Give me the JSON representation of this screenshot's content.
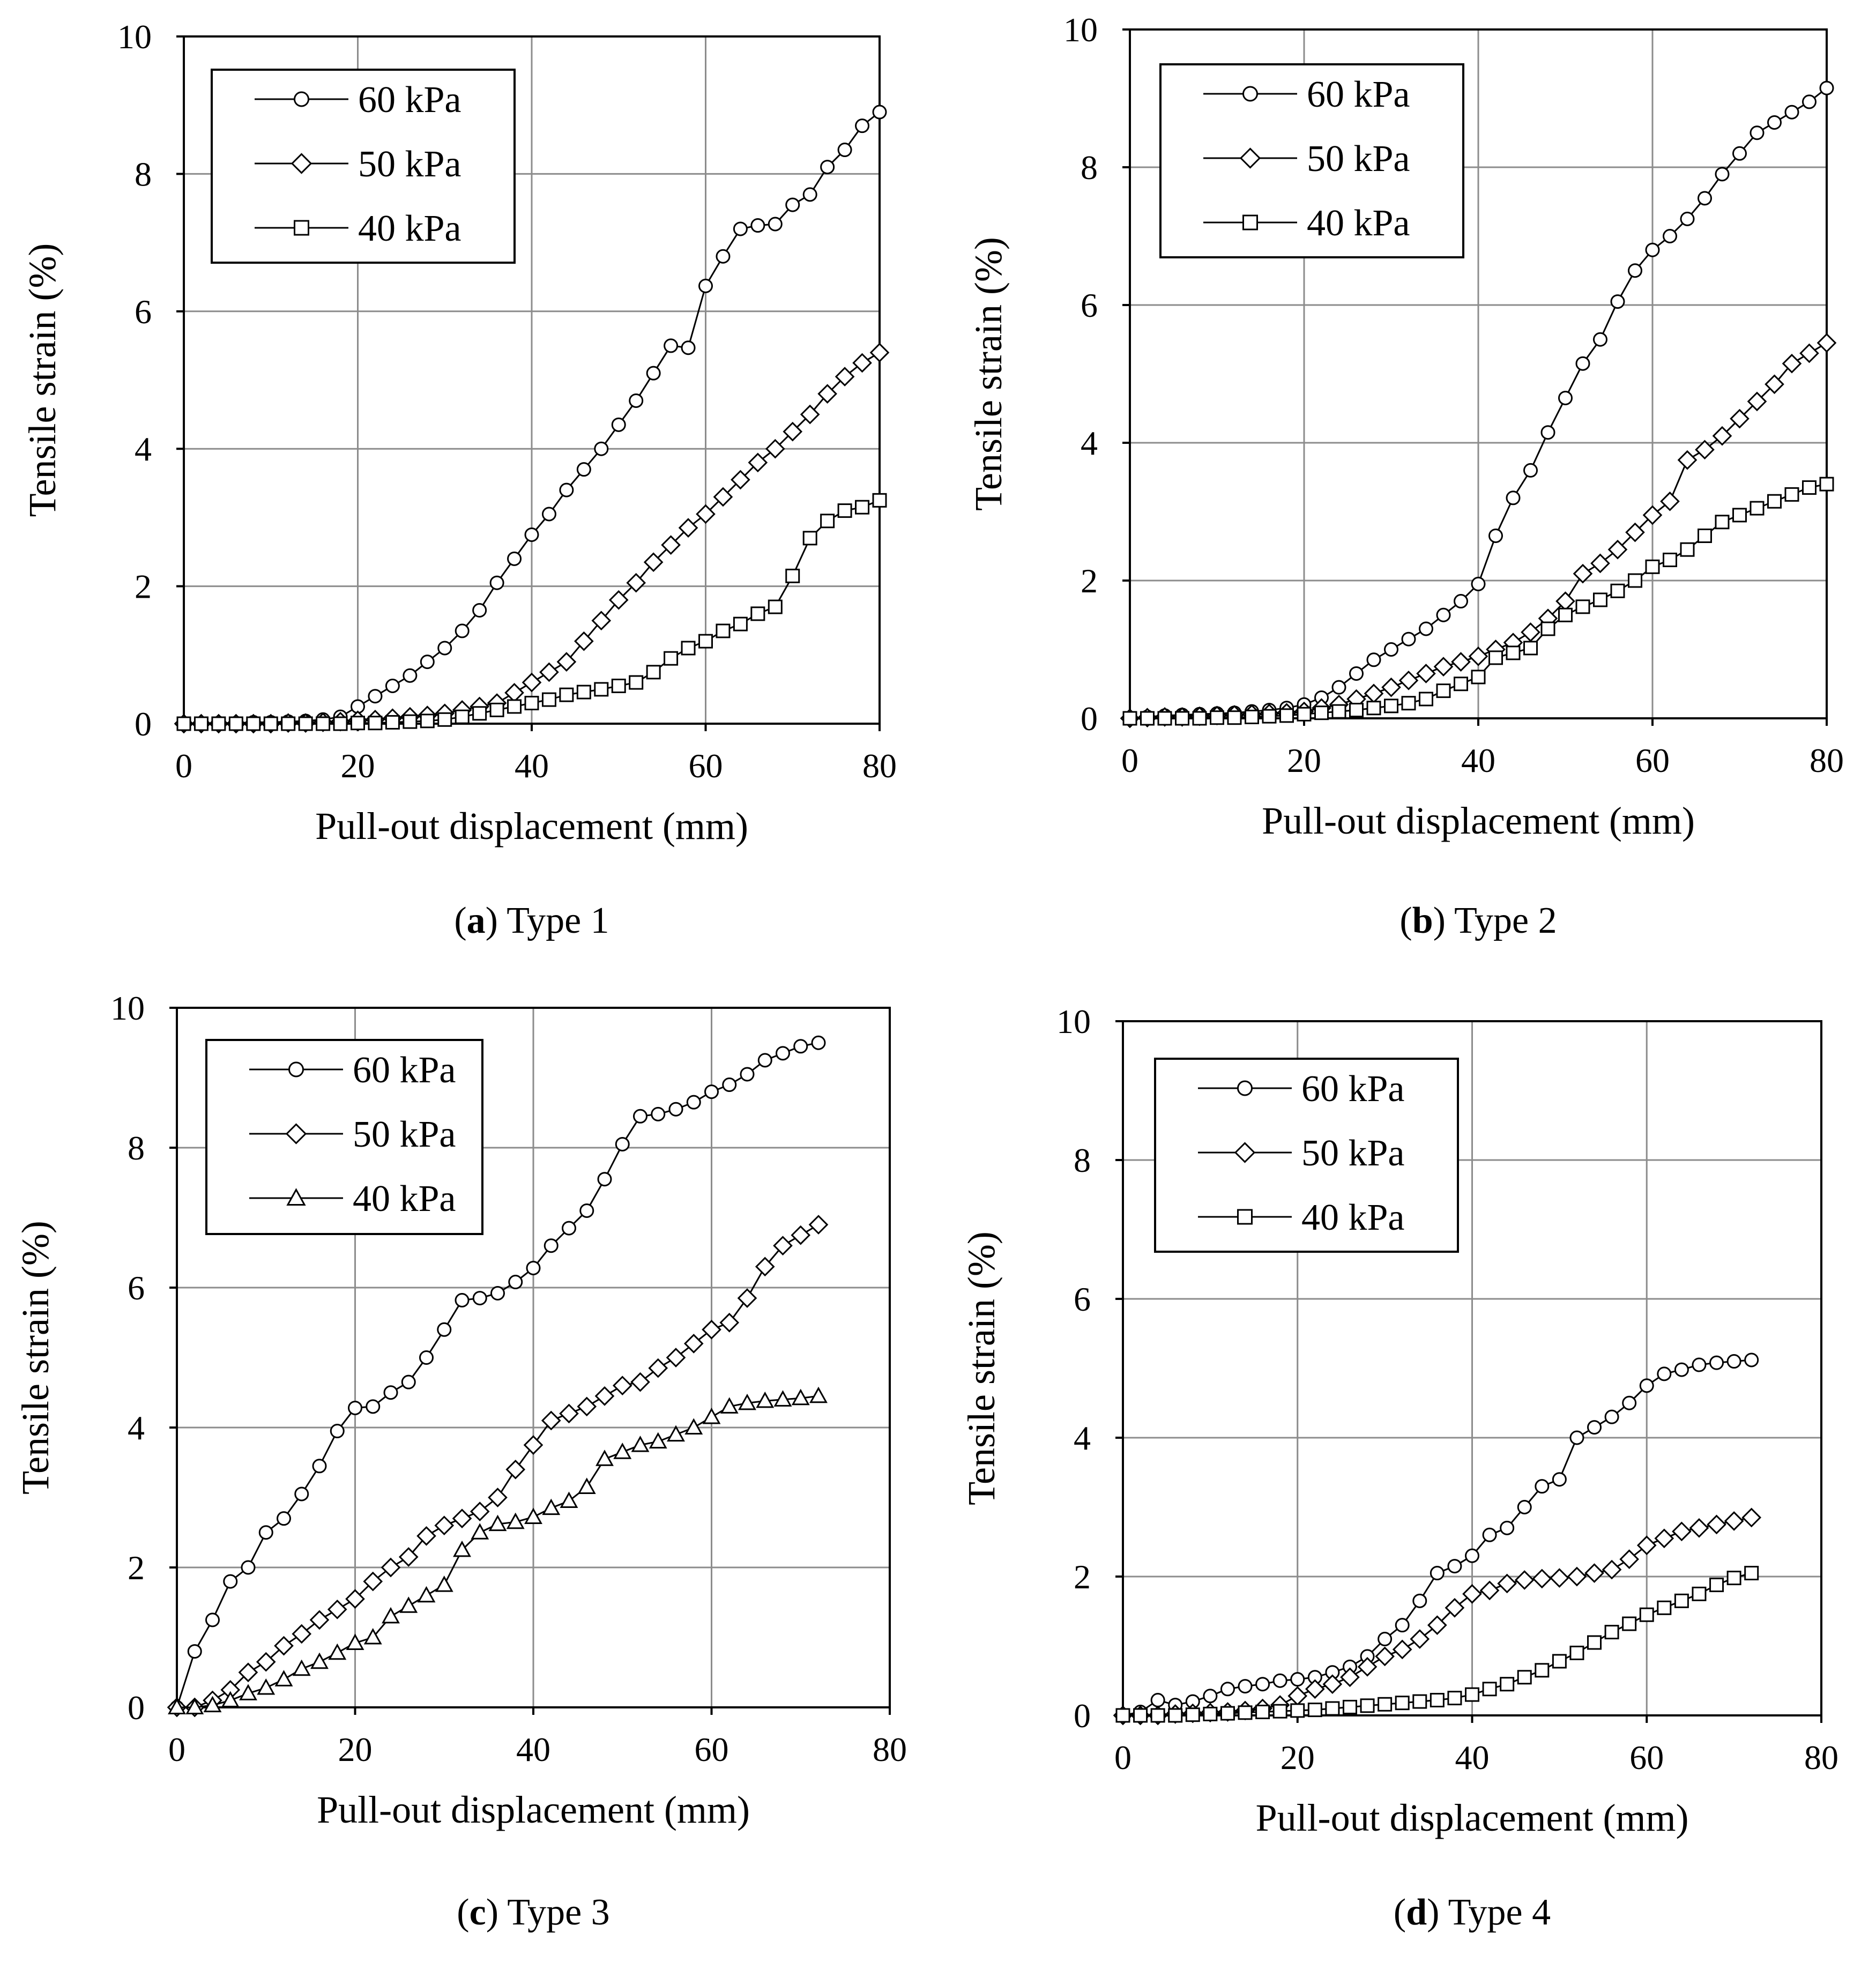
{
  "figure": {
    "colors": {
      "axis": "#000000",
      "grid": "#8c8c8c",
      "line": "#000000",
      "marker_fill": "#ffffff"
    }
  },
  "chart_data": [
    {
      "id": "a",
      "type": "line",
      "caption": {
        "letter": "a",
        "text": "Type 1"
      },
      "xlabel": "Pull-out displacement (mm)",
      "ylabel": "Tensile strain (%)",
      "xlim": [
        0,
        80
      ],
      "ylim": [
        0,
        10
      ],
      "xticks": [
        0,
        20,
        40,
        60,
        80
      ],
      "yticks": [
        0,
        2,
        4,
        6,
        8,
        10
      ],
      "grid": true,
      "legend": {
        "position": "top-left"
      },
      "series": [
        {
          "name": "60 kPa",
          "marker": "circle",
          "x": [
            0,
            2,
            4,
            6,
            8,
            10,
            12,
            14,
            16,
            18,
            20,
            22,
            24,
            26,
            28,
            30,
            32,
            34,
            36,
            38,
            40,
            42,
            44,
            46,
            48,
            50,
            52,
            54,
            56,
            58,
            60,
            62,
            64,
            66,
            68,
            70,
            72,
            74,
            76,
            78,
            80
          ],
          "y": [
            0,
            0,
            0.01,
            0.01,
            0.02,
            0.02,
            0.03,
            0.04,
            0.06,
            0.1,
            0.25,
            0.4,
            0.55,
            0.7,
            0.9,
            1.1,
            1.35,
            1.65,
            2.05,
            2.4,
            2.75,
            3.05,
            3.4,
            3.7,
            4.0,
            4.35,
            4.7,
            5.1,
            5.5,
            5.47,
            6.37,
            6.8,
            7.2,
            7.25,
            7.27,
            7.55,
            7.7,
            8.1,
            8.35,
            8.7,
            8.9
          ]
        },
        {
          "name": "50 kPa",
          "marker": "diamond",
          "x": [
            0,
            2,
            4,
            6,
            8,
            10,
            12,
            14,
            16,
            18,
            20,
            22,
            24,
            26,
            28,
            30,
            32,
            34,
            36,
            38,
            40,
            42,
            44,
            46,
            48,
            50,
            52,
            54,
            56,
            58,
            60,
            62,
            64,
            66,
            68,
            70,
            72,
            74,
            76,
            78,
            80
          ],
          "y": [
            0,
            0,
            0,
            0,
            0,
            0,
            0.01,
            0.01,
            0.02,
            0.03,
            0.05,
            0.06,
            0.08,
            0.1,
            0.12,
            0.15,
            0.2,
            0.25,
            0.3,
            0.45,
            0.6,
            0.75,
            0.9,
            1.2,
            1.5,
            1.8,
            2.05,
            2.35,
            2.6,
            2.85,
            3.05,
            3.3,
            3.55,
            3.8,
            4.0,
            4.25,
            4.5,
            4.8,
            5.05,
            5.25,
            5.4
          ]
        },
        {
          "name": "40 kPa",
          "marker": "square",
          "x": [
            0,
            2,
            4,
            6,
            8,
            10,
            12,
            14,
            16,
            18,
            20,
            22,
            24,
            26,
            28,
            30,
            32,
            34,
            36,
            38,
            40,
            42,
            44,
            46,
            48,
            50,
            52,
            54,
            56,
            58,
            60,
            62,
            64,
            66,
            68,
            70,
            72,
            74,
            76,
            78,
            80
          ],
          "y": [
            0,
            0,
            0,
            0,
            0,
            0,
            0,
            0,
            0,
            0,
            0.01,
            0.01,
            0.02,
            0.03,
            0.04,
            0.06,
            0.1,
            0.15,
            0.2,
            0.25,
            0.3,
            0.35,
            0.42,
            0.46,
            0.5,
            0.55,
            0.6,
            0.75,
            0.95,
            1.1,
            1.2,
            1.35,
            1.45,
            1.6,
            1.7,
            2.15,
            2.7,
            2.95,
            3.1,
            3.15,
            3.25
          ]
        }
      ]
    },
    {
      "id": "b",
      "type": "line",
      "caption": {
        "letter": "b",
        "text": "Type 2"
      },
      "xlabel": "Pull-out displacement (mm)",
      "ylabel": "Tensile strain (%)",
      "xlim": [
        0,
        80
      ],
      "ylim": [
        0,
        10
      ],
      "xticks": [
        0,
        20,
        40,
        60,
        80
      ],
      "yticks": [
        0,
        2,
        4,
        6,
        8,
        10
      ],
      "grid": true,
      "legend": {
        "position": "top-left"
      },
      "series": [
        {
          "name": "60 kPa",
          "marker": "circle",
          "x": [
            0,
            2,
            4,
            6,
            8,
            10,
            12,
            14,
            16,
            18,
            20,
            22,
            24,
            26,
            28,
            30,
            32,
            34,
            36,
            38,
            40,
            42,
            44,
            46,
            48,
            50,
            52,
            54,
            56,
            58,
            60,
            62,
            64,
            66,
            68,
            70,
            72,
            74,
            76,
            78,
            80
          ],
          "y": [
            0,
            0.02,
            0.04,
            0.05,
            0.06,
            0.07,
            0.08,
            0.1,
            0.12,
            0.15,
            0.2,
            0.3,
            0.45,
            0.65,
            0.85,
            1.0,
            1.15,
            1.3,
            1.5,
            1.7,
            1.95,
            2.65,
            3.2,
            3.6,
            4.15,
            4.65,
            5.15,
            5.5,
            6.05,
            6.5,
            6.8,
            7.0,
            7.25,
            7.55,
            7.9,
            8.2,
            8.5,
            8.65,
            8.8,
            8.95,
            9.15
          ]
        },
        {
          "name": "50 kPa",
          "marker": "diamond",
          "x": [
            0,
            2,
            4,
            6,
            8,
            10,
            12,
            14,
            16,
            18,
            20,
            22,
            24,
            26,
            28,
            30,
            32,
            34,
            36,
            38,
            40,
            42,
            44,
            46,
            48,
            50,
            52,
            54,
            56,
            58,
            60,
            62,
            64,
            66,
            68,
            70,
            72,
            74,
            76,
            78,
            80
          ],
          "y": [
            0,
            0.01,
            0.02,
            0.02,
            0.03,
            0.04,
            0.05,
            0.06,
            0.07,
            0.08,
            0.1,
            0.15,
            0.2,
            0.28,
            0.36,
            0.45,
            0.55,
            0.65,
            0.75,
            0.82,
            0.9,
            1.0,
            1.1,
            1.25,
            1.45,
            1.7,
            2.1,
            2.25,
            2.45,
            2.7,
            2.95,
            3.15,
            3.75,
            3.9,
            4.1,
            4.35,
            4.6,
            4.85,
            5.15,
            5.3,
            5.45
          ]
        },
        {
          "name": "40 kPa",
          "marker": "square",
          "x": [
            0,
            2,
            4,
            6,
            8,
            10,
            12,
            14,
            16,
            18,
            20,
            22,
            24,
            26,
            28,
            30,
            32,
            34,
            36,
            38,
            40,
            42,
            44,
            46,
            48,
            50,
            52,
            54,
            56,
            58,
            60,
            62,
            64,
            66,
            68,
            70,
            72,
            74,
            76,
            78,
            80
          ],
          "y": [
            0,
            0,
            0,
            0,
            0,
            0.01,
            0.01,
            0.02,
            0.03,
            0.04,
            0.06,
            0.08,
            0.1,
            0.12,
            0.15,
            0.18,
            0.22,
            0.28,
            0.4,
            0.5,
            0.6,
            0.88,
            0.95,
            1.02,
            1.3,
            1.5,
            1.62,
            1.72,
            1.85,
            2.0,
            2.2,
            2.3,
            2.45,
            2.65,
            2.85,
            2.95,
            3.05,
            3.15,
            3.25,
            3.35,
            3.4
          ]
        }
      ]
    },
    {
      "id": "c",
      "type": "line",
      "caption": {
        "letter": "c",
        "text": "Type 3"
      },
      "xlabel": "Pull-out displacement (mm)",
      "ylabel": "Tensile strain (%)",
      "xlim": [
        0,
        80
      ],
      "ylim": [
        0,
        10
      ],
      "xticks": [
        0,
        20,
        40,
        60,
        80
      ],
      "yticks": [
        0,
        2,
        4,
        6,
        8,
        10
      ],
      "grid": true,
      "legend": {
        "position": "top-left"
      },
      "series": [
        {
          "name": "60 kPa",
          "marker": "circle",
          "x": [
            0,
            2,
            4,
            6,
            8,
            10,
            12,
            14,
            16,
            18,
            20,
            22,
            24,
            26,
            28,
            30,
            32,
            34,
            36,
            38,
            40,
            42,
            44,
            46,
            48,
            50,
            52,
            54,
            56,
            58,
            60,
            62,
            64,
            66,
            68,
            70,
            72
          ],
          "y": [
            0,
            0.8,
            1.25,
            1.8,
            2.0,
            2.5,
            2.7,
            3.05,
            3.45,
            3.95,
            4.28,
            4.3,
            4.5,
            4.65,
            5.0,
            5.4,
            5.82,
            5.85,
            5.92,
            6.08,
            6.28,
            6.6,
            6.85,
            7.1,
            7.55,
            8.05,
            8.45,
            8.48,
            8.55,
            8.65,
            8.8,
            8.9,
            9.05,
            9.25,
            9.35,
            9.45,
            9.5
          ]
        },
        {
          "name": "50 kPa",
          "marker": "diamond",
          "x": [
            0,
            2,
            4,
            6,
            8,
            10,
            12,
            14,
            16,
            18,
            20,
            22,
            24,
            26,
            28,
            30,
            32,
            34,
            36,
            38,
            40,
            42,
            44,
            46,
            48,
            50,
            52,
            54,
            56,
            58,
            60,
            62,
            64,
            66,
            68,
            70,
            72
          ],
          "y": [
            0,
            0,
            0.1,
            0.25,
            0.5,
            0.65,
            0.88,
            1.05,
            1.25,
            1.4,
            1.55,
            1.8,
            2.0,
            2.15,
            2.45,
            2.6,
            2.7,
            2.8,
            3.0,
            3.4,
            3.75,
            4.1,
            4.2,
            4.3,
            4.45,
            4.6,
            4.65,
            4.85,
            5.0,
            5.2,
            5.4,
            5.5,
            5.85,
            6.3,
            6.6,
            6.75,
            6.9
          ]
        },
        {
          "name": "40 kPa",
          "marker": "triangle",
          "x": [
            0,
            2,
            4,
            6,
            8,
            10,
            12,
            14,
            16,
            18,
            20,
            22,
            24,
            26,
            28,
            30,
            32,
            34,
            36,
            38,
            40,
            42,
            44,
            46,
            48,
            50,
            52,
            54,
            56,
            58,
            60,
            62,
            64,
            66,
            68,
            70,
            72
          ],
          "y": [
            0,
            0,
            0.03,
            0.1,
            0.2,
            0.28,
            0.4,
            0.55,
            0.65,
            0.78,
            0.92,
            1.0,
            1.3,
            1.45,
            1.6,
            1.75,
            2.25,
            2.5,
            2.62,
            2.65,
            2.72,
            2.85,
            2.95,
            3.15,
            3.55,
            3.65,
            3.75,
            3.8,
            3.9,
            4.0,
            4.15,
            4.3,
            4.35,
            4.38,
            4.4,
            4.42,
            4.45
          ]
        }
      ]
    },
    {
      "id": "d",
      "type": "line",
      "caption": {
        "letter": "d",
        "text": "Type 4"
      },
      "xlabel": "Pull-out displacement (mm)",
      "ylabel": "Tensile strain (%)",
      "xlim": [
        0,
        80
      ],
      "ylim": [
        0,
        10
      ],
      "xticks": [
        0,
        20,
        40,
        60,
        80
      ],
      "yticks": [
        0,
        2,
        4,
        6,
        8,
        10
      ],
      "grid": true,
      "legend": {
        "position": "top-left"
      },
      "series": [
        {
          "name": "60 kPa",
          "marker": "circle",
          "x": [
            0,
            2,
            4,
            6,
            8,
            10,
            12,
            14,
            16,
            18,
            20,
            22,
            24,
            26,
            28,
            30,
            32,
            34,
            36,
            38,
            40,
            42,
            44,
            46,
            48,
            50,
            52,
            54,
            56,
            58,
            60,
            62,
            64,
            66,
            68,
            70,
            72
          ],
          "y": [
            0,
            0.05,
            0.22,
            0.15,
            0.2,
            0.28,
            0.38,
            0.42,
            0.45,
            0.5,
            0.52,
            0.55,
            0.62,
            0.7,
            0.85,
            1.1,
            1.3,
            1.65,
            2.05,
            2.15,
            2.3,
            2.6,
            2.7,
            3.0,
            3.3,
            3.4,
            4.0,
            4.15,
            4.3,
            4.5,
            4.75,
            4.92,
            4.98,
            5.05,
            5.08,
            5.1,
            5.12
          ]
        },
        {
          "name": "50 kPa",
          "marker": "diamond",
          "x": [
            0,
            2,
            4,
            6,
            8,
            10,
            12,
            14,
            16,
            18,
            20,
            22,
            24,
            26,
            28,
            30,
            32,
            34,
            36,
            38,
            40,
            42,
            44,
            46,
            48,
            50,
            52,
            54,
            56,
            58,
            60,
            62,
            64,
            66,
            68,
            70,
            72
          ],
          "y": [
            0,
            0,
            0,
            0.02,
            0.03,
            0.04,
            0.05,
            0.07,
            0.1,
            0.15,
            0.28,
            0.38,
            0.45,
            0.55,
            0.7,
            0.85,
            0.95,
            1.1,
            1.3,
            1.55,
            1.75,
            1.8,
            1.9,
            1.95,
            1.97,
            1.98,
            2.0,
            2.05,
            2.1,
            2.25,
            2.45,
            2.55,
            2.65,
            2.7,
            2.75,
            2.8,
            2.85
          ]
        },
        {
          "name": "40 kPa",
          "marker": "square",
          "x": [
            0,
            2,
            4,
            6,
            8,
            10,
            12,
            14,
            16,
            18,
            20,
            22,
            24,
            26,
            28,
            30,
            32,
            34,
            36,
            38,
            40,
            42,
            44,
            46,
            48,
            50,
            52,
            54,
            56,
            58,
            60,
            62,
            64,
            66,
            68,
            70,
            72
          ],
          "y": [
            0,
            0,
            0,
            0,
            0.01,
            0.02,
            0.03,
            0.04,
            0.05,
            0.06,
            0.07,
            0.08,
            0.1,
            0.12,
            0.14,
            0.16,
            0.18,
            0.2,
            0.22,
            0.25,
            0.3,
            0.38,
            0.45,
            0.55,
            0.65,
            0.78,
            0.9,
            1.05,
            1.2,
            1.32,
            1.45,
            1.55,
            1.65,
            1.75,
            1.88,
            1.98,
            2.05
          ]
        }
      ]
    }
  ]
}
